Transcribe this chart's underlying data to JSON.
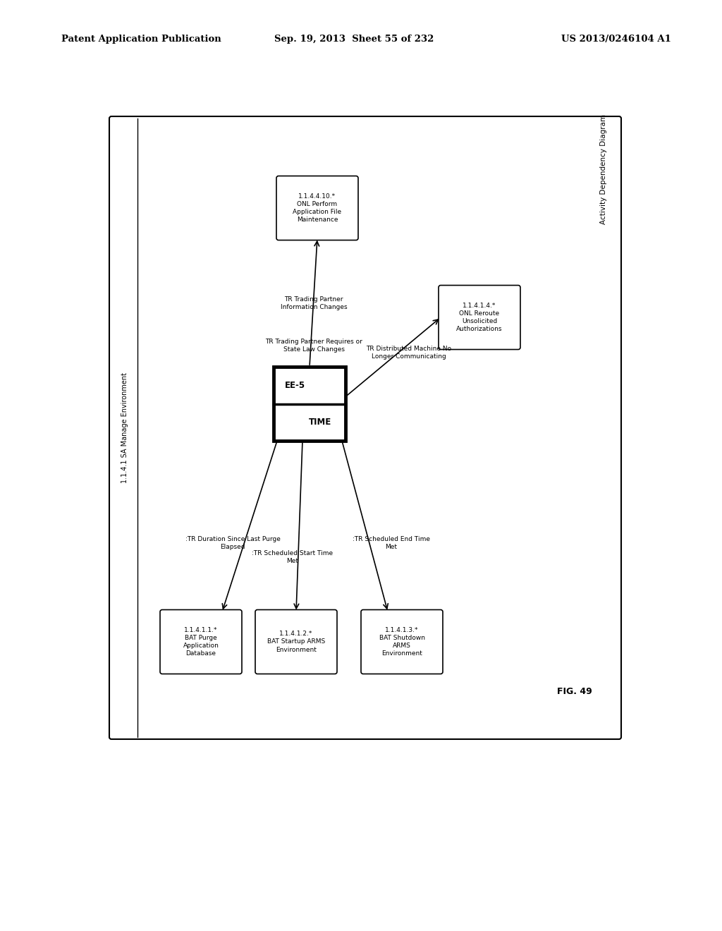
{
  "header_left": "Patent Application Publication",
  "header_mid": "Sep. 19, 2013  Sheet 55 of 232",
  "header_right": "US 2013/0246104 A1",
  "fig_label": "FIG. 49",
  "outer_label_left": "1.1.4.1 SA Manage Environment",
  "outer_label_right": "Activity Dependency Diagram",
  "center_box_top": "EE-5",
  "center_box_bottom": "TIME",
  "n1_text": "1.1.4.1.1.*\nBAT Purge\nApplication\nDatabase",
  "n2_text": "1.1.4.1.2.*\nBAT Startup ARMS\nEnvironment",
  "n3_text": "1.1.4.4.10.*\nONL Perform\nApplication File\nMaintenance",
  "n4_text": "1.1.4.1.4.*\nONL Reroute\nUnsolicited\nAuthorizations",
  "n5_text": "1.1.4.1.3.*\nBAT Shutdown\nARMS\nEnvironment",
  "arr1_label": ":TR Duration Since Last Purge\nElapsed",
  "arr2_label": ":TR Scheduled Start Time\nMet",
  "arr3_label1": "TR Trading Partner\nInformation Changes",
  "arr3_label2": "TR Trading Partner Requires or\nState Law Changes",
  "arr4_label": "TR Distributed Machine No\nLonger Communicating",
  "arr5_label": ":TR Scheduled End Time\nMet",
  "bg_color": "#ffffff"
}
